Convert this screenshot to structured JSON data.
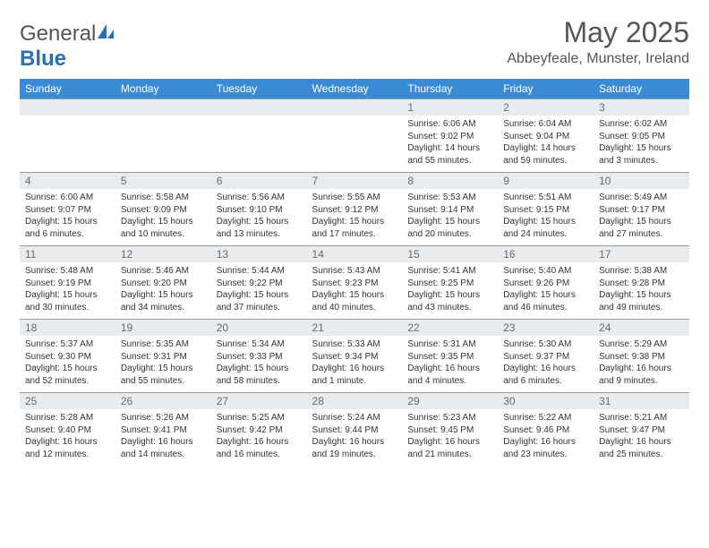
{
  "brand": {
    "name_a": "General",
    "name_b": "Blue",
    "logo_color": "#2a6fb5"
  },
  "title": "May 2025",
  "location": "Abbeyfeale, Munster, Ireland",
  "weekday_headers": [
    "Sunday",
    "Monday",
    "Tuesday",
    "Wednesday",
    "Thursday",
    "Friday",
    "Saturday"
  ],
  "colors": {
    "header_bg": "#3b8bd4",
    "header_text": "#ffffff",
    "daynum_bg": "#e9ecef",
    "daynum_text": "#5f6b77",
    "body_text": "#333333",
    "border": "#999999"
  },
  "fonts": {
    "title_size_pt": 24,
    "location_size_pt": 12,
    "header_size_pt": 9,
    "daynum_size_pt": 9,
    "cell_size_pt": 7.5
  },
  "weeks": [
    [
      {
        "n": "",
        "sr": "",
        "ss": "",
        "dl": ""
      },
      {
        "n": "",
        "sr": "",
        "ss": "",
        "dl": ""
      },
      {
        "n": "",
        "sr": "",
        "ss": "",
        "dl": ""
      },
      {
        "n": "",
        "sr": "",
        "ss": "",
        "dl": ""
      },
      {
        "n": "1",
        "sr": "Sunrise: 6:06 AM",
        "ss": "Sunset: 9:02 PM",
        "dl": "Daylight: 14 hours and 55 minutes."
      },
      {
        "n": "2",
        "sr": "Sunrise: 6:04 AM",
        "ss": "Sunset: 9:04 PM",
        "dl": "Daylight: 14 hours and 59 minutes."
      },
      {
        "n": "3",
        "sr": "Sunrise: 6:02 AM",
        "ss": "Sunset: 9:05 PM",
        "dl": "Daylight: 15 hours and 3 minutes."
      }
    ],
    [
      {
        "n": "4",
        "sr": "Sunrise: 6:00 AM",
        "ss": "Sunset: 9:07 PM",
        "dl": "Daylight: 15 hours and 6 minutes."
      },
      {
        "n": "5",
        "sr": "Sunrise: 5:58 AM",
        "ss": "Sunset: 9:09 PM",
        "dl": "Daylight: 15 hours and 10 minutes."
      },
      {
        "n": "6",
        "sr": "Sunrise: 5:56 AM",
        "ss": "Sunset: 9:10 PM",
        "dl": "Daylight: 15 hours and 13 minutes."
      },
      {
        "n": "7",
        "sr": "Sunrise: 5:55 AM",
        "ss": "Sunset: 9:12 PM",
        "dl": "Daylight: 15 hours and 17 minutes."
      },
      {
        "n": "8",
        "sr": "Sunrise: 5:53 AM",
        "ss": "Sunset: 9:14 PM",
        "dl": "Daylight: 15 hours and 20 minutes."
      },
      {
        "n": "9",
        "sr": "Sunrise: 5:51 AM",
        "ss": "Sunset: 9:15 PM",
        "dl": "Daylight: 15 hours and 24 minutes."
      },
      {
        "n": "10",
        "sr": "Sunrise: 5:49 AM",
        "ss": "Sunset: 9:17 PM",
        "dl": "Daylight: 15 hours and 27 minutes."
      }
    ],
    [
      {
        "n": "11",
        "sr": "Sunrise: 5:48 AM",
        "ss": "Sunset: 9:19 PM",
        "dl": "Daylight: 15 hours and 30 minutes."
      },
      {
        "n": "12",
        "sr": "Sunrise: 5:46 AM",
        "ss": "Sunset: 9:20 PM",
        "dl": "Daylight: 15 hours and 34 minutes."
      },
      {
        "n": "13",
        "sr": "Sunrise: 5:44 AM",
        "ss": "Sunset: 9:22 PM",
        "dl": "Daylight: 15 hours and 37 minutes."
      },
      {
        "n": "14",
        "sr": "Sunrise: 5:43 AM",
        "ss": "Sunset: 9:23 PM",
        "dl": "Daylight: 15 hours and 40 minutes."
      },
      {
        "n": "15",
        "sr": "Sunrise: 5:41 AM",
        "ss": "Sunset: 9:25 PM",
        "dl": "Daylight: 15 hours and 43 minutes."
      },
      {
        "n": "16",
        "sr": "Sunrise: 5:40 AM",
        "ss": "Sunset: 9:26 PM",
        "dl": "Daylight: 15 hours and 46 minutes."
      },
      {
        "n": "17",
        "sr": "Sunrise: 5:38 AM",
        "ss": "Sunset: 9:28 PM",
        "dl": "Daylight: 15 hours and 49 minutes."
      }
    ],
    [
      {
        "n": "18",
        "sr": "Sunrise: 5:37 AM",
        "ss": "Sunset: 9:30 PM",
        "dl": "Daylight: 15 hours and 52 minutes."
      },
      {
        "n": "19",
        "sr": "Sunrise: 5:35 AM",
        "ss": "Sunset: 9:31 PM",
        "dl": "Daylight: 15 hours and 55 minutes."
      },
      {
        "n": "20",
        "sr": "Sunrise: 5:34 AM",
        "ss": "Sunset: 9:33 PM",
        "dl": "Daylight: 15 hours and 58 minutes."
      },
      {
        "n": "21",
        "sr": "Sunrise: 5:33 AM",
        "ss": "Sunset: 9:34 PM",
        "dl": "Daylight: 16 hours and 1 minute."
      },
      {
        "n": "22",
        "sr": "Sunrise: 5:31 AM",
        "ss": "Sunset: 9:35 PM",
        "dl": "Daylight: 16 hours and 4 minutes."
      },
      {
        "n": "23",
        "sr": "Sunrise: 5:30 AM",
        "ss": "Sunset: 9:37 PM",
        "dl": "Daylight: 16 hours and 6 minutes."
      },
      {
        "n": "24",
        "sr": "Sunrise: 5:29 AM",
        "ss": "Sunset: 9:38 PM",
        "dl": "Daylight: 16 hours and 9 minutes."
      }
    ],
    [
      {
        "n": "25",
        "sr": "Sunrise: 5:28 AM",
        "ss": "Sunset: 9:40 PM",
        "dl": "Daylight: 16 hours and 12 minutes."
      },
      {
        "n": "26",
        "sr": "Sunrise: 5:26 AM",
        "ss": "Sunset: 9:41 PM",
        "dl": "Daylight: 16 hours and 14 minutes."
      },
      {
        "n": "27",
        "sr": "Sunrise: 5:25 AM",
        "ss": "Sunset: 9:42 PM",
        "dl": "Daylight: 16 hours and 16 minutes."
      },
      {
        "n": "28",
        "sr": "Sunrise: 5:24 AM",
        "ss": "Sunset: 9:44 PM",
        "dl": "Daylight: 16 hours and 19 minutes."
      },
      {
        "n": "29",
        "sr": "Sunrise: 5:23 AM",
        "ss": "Sunset: 9:45 PM",
        "dl": "Daylight: 16 hours and 21 minutes."
      },
      {
        "n": "30",
        "sr": "Sunrise: 5:22 AM",
        "ss": "Sunset: 9:46 PM",
        "dl": "Daylight: 16 hours and 23 minutes."
      },
      {
        "n": "31",
        "sr": "Sunrise: 5:21 AM",
        "ss": "Sunset: 9:47 PM",
        "dl": "Daylight: 16 hours and 25 minutes."
      }
    ]
  ]
}
